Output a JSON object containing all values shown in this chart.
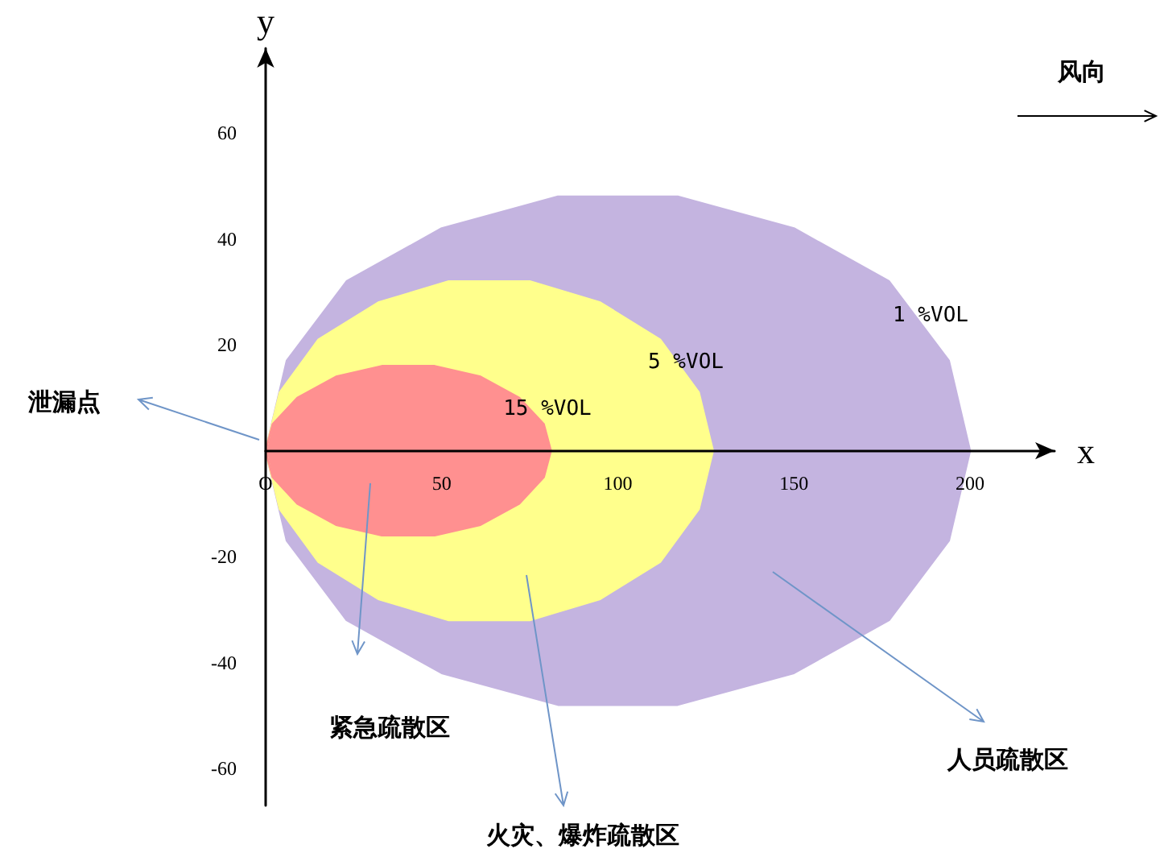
{
  "chart_data": {
    "type": "area",
    "xlabel": "x",
    "ylabel": "y",
    "xlim": [
      0,
      224
    ],
    "ylim": [
      -67,
      76
    ],
    "xticks": [
      {
        "value": 0,
        "label": "O"
      },
      50,
      100,
      150,
      200
    ],
    "yticks": [
      -60,
      -40,
      -20,
      20,
      40,
      60
    ],
    "grid": false,
    "marker": "none",
    "series": [
      {
        "color": "#c4b4e0",
        "x": [
          200,
          194,
          177,
          150,
          117,
          83,
          50,
          23,
          6,
          0,
          6,
          23,
          50,
          83,
          117,
          150,
          177,
          194,
          200
        ],
        "values": [
          0,
          17,
          32,
          42,
          48,
          48,
          42,
          32,
          17,
          0,
          -17,
          -32,
          -42,
          -48,
          -48,
          -42,
          -32,
          -17,
          0
        ]
      },
      {
        "color": "#ffff8c",
        "x": [
          127,
          123,
          112,
          95,
          75,
          52,
          32,
          15,
          4,
          0,
          4,
          15,
          32,
          52,
          75,
          95,
          112,
          123,
          127
        ],
        "values": [
          0,
          11,
          21,
          28,
          32,
          32,
          28,
          21,
          11,
          0,
          -11,
          -21,
          -28,
          -32,
          -32,
          -28,
          -21,
          -11,
          0
        ]
      },
      {
        "color": "#ff9090",
        "x": [
          81,
          79,
          72,
          61,
          48,
          33,
          20,
          9,
          2,
          0,
          2,
          9,
          20,
          33,
          48,
          61,
          72,
          79,
          81
        ],
        "values": [
          0,
          5,
          10,
          14,
          16,
          16,
          14,
          10,
          5,
          0,
          -5,
          -10,
          -14,
          -16,
          -16,
          -14,
          -10,
          -5,
          0
        ]
      }
    ],
    "annotations": [
      "风向",
      "泄漏点",
      "紧急疏散区",
      "火灾、爆炸疏散区",
      "人员疏散区",
      "1 %VOL",
      "5 %VOL",
      "15 %VOL"
    ]
  }
}
